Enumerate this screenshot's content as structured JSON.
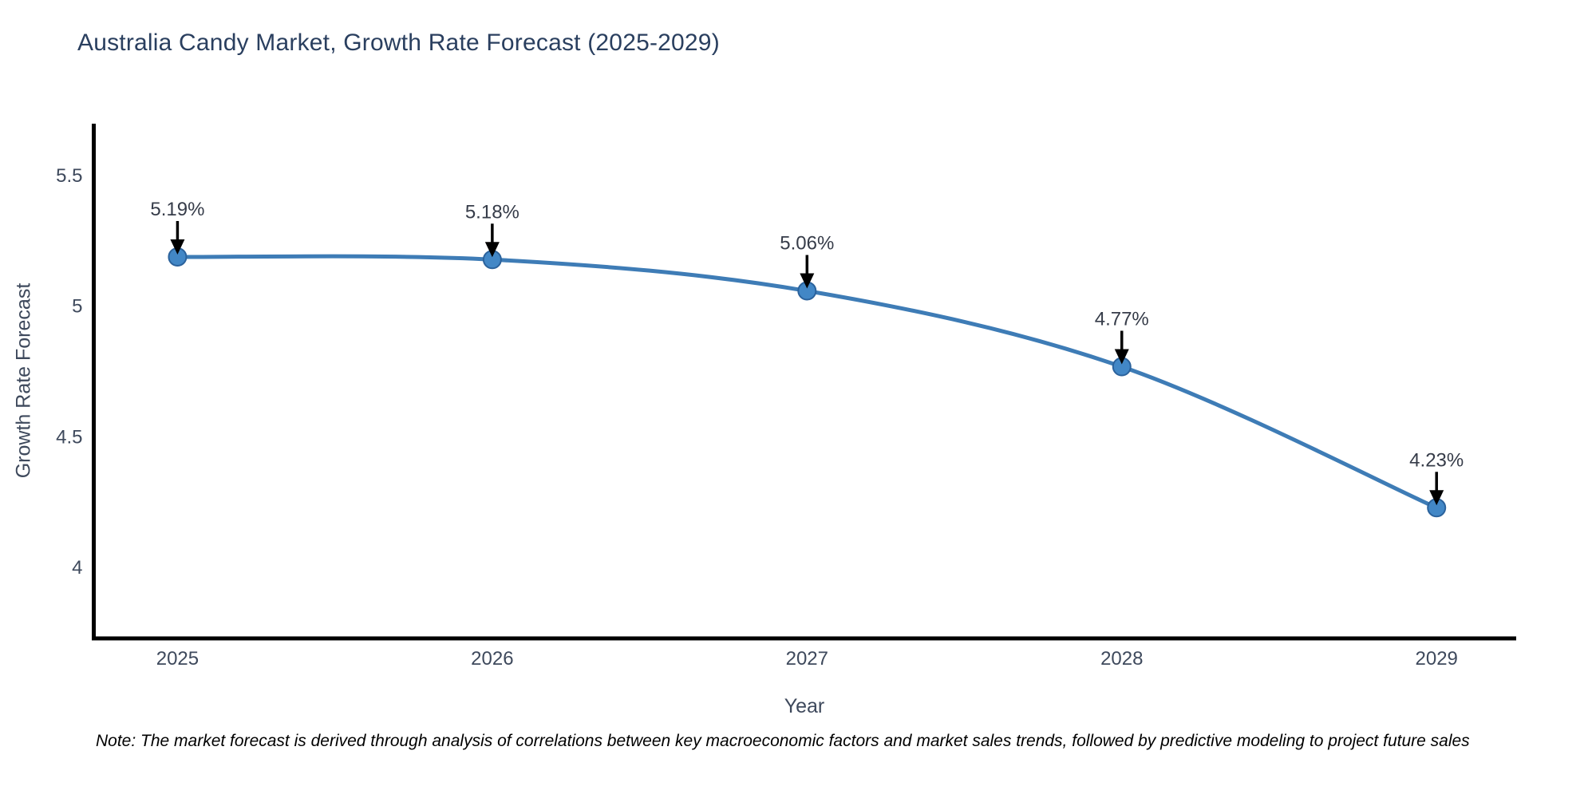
{
  "note": "Note: The market forecast is derived through analysis of correlations between key macroeconomic factors and market sales trends, followed by predictive modeling to project future sales",
  "chart_data": {
    "type": "line",
    "title": "Australia Candy Market, Growth Rate Forecast (2025-2029)",
    "xlabel": "Year",
    "ylabel": "Growth Rate Forecast",
    "x": [
      2025,
      2026,
      2027,
      2028,
      2029
    ],
    "xtick_labels": [
      "2025",
      "2026",
      "2027",
      "2028",
      "2029"
    ],
    "series": [
      {
        "name": "Growth Rate Forecast",
        "values": [
          5.19,
          5.18,
          5.06,
          4.77,
          4.23
        ]
      }
    ],
    "point_labels": [
      "5.19%",
      "5.18%",
      "5.06%",
      "4.77%",
      "4.23%"
    ],
    "yticks": [
      4,
      4.5,
      5,
      5.5
    ],
    "ytick_labels": [
      "4",
      "4.5",
      "5",
      "5.5"
    ],
    "ylim": [
      3.73,
      5.7
    ],
    "xlim": [
      2024.734,
      2029.253
    ],
    "grid": false,
    "legend": "none",
    "line_shape": "spline",
    "marker": "circle",
    "annotation_arrow": "down",
    "colors": {
      "line": "#3e7cb6",
      "marker_fill": "#4287c6",
      "marker_edge": "#2b629c",
      "axis": "#000000",
      "tick_label": "#3e495c",
      "annotation_text": "#363c49",
      "arrow": "#000000",
      "title": "#2a3f5f",
      "note": "#000000",
      "background": "#ffffff"
    }
  }
}
